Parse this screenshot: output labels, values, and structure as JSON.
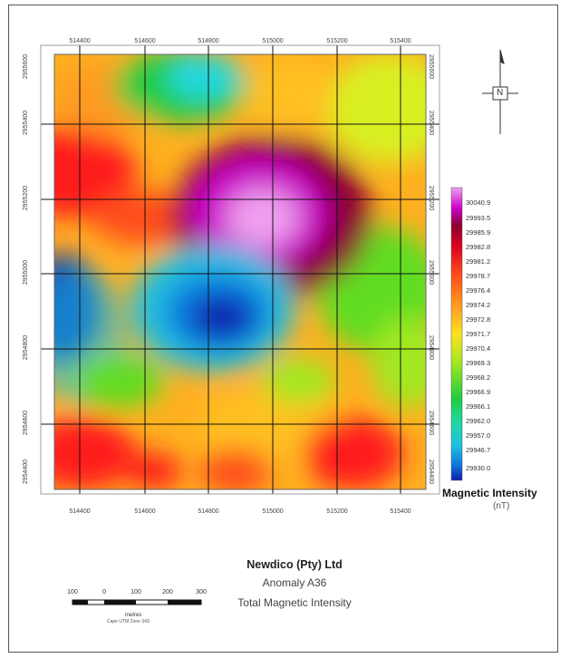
{
  "map": {
    "x_ticks": [
      "514400",
      "514600",
      "514800",
      "515000",
      "515200",
      "515400"
    ],
    "y_ticks_left": [
      "2954400",
      "2954600",
      "2954800",
      "2955000",
      "2955200",
      "2955400",
      "2955600"
    ],
    "y_ticks_right": [
      "2954400",
      "2954600",
      "2954800",
      "2955000",
      "2955200",
      "2955400",
      "2955600"
    ],
    "north_label": "N"
  },
  "legend": {
    "values": [
      "30040.9",
      "29993.5",
      "29985.9",
      "29982.8",
      "29981.2",
      "29978.7",
      "29976.4",
      "29974.2",
      "29972.8",
      "29971.7",
      "29970.4",
      "29969.3",
      "29968.2",
      "29966.9",
      "29966.1",
      "29962.0",
      "29957.0",
      "29946.7",
      "29930.0"
    ],
    "colors": [
      "#f0a0f0",
      "#cc00cc",
      "#8b0030",
      "#b0002a",
      "#dd0020",
      "#ff1a1a",
      "#ff4d1a",
      "#ff7a1a",
      "#ff9a20",
      "#ffc020",
      "#ffe020",
      "#d8f020",
      "#a0e820",
      "#60dd20",
      "#20cc40",
      "#20d8a0",
      "#20c0e0",
      "#1080e0",
      "#1020b0"
    ],
    "title": "Magnetic Intensity",
    "unit": "(nT)"
  },
  "title_block": {
    "company": "Newdico (Pty) Ltd",
    "anomaly": "Anomaly A36",
    "subtitle": "Total Magnetic Intensity"
  },
  "scale_bar": {
    "labels": [
      "100",
      "0",
      "100",
      "200",
      "300"
    ],
    "units": "metres",
    "projection": "Cape UTM Zone 34S"
  }
}
